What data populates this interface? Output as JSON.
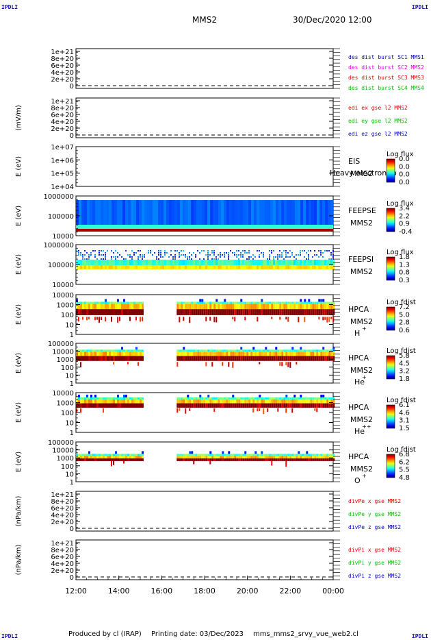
{
  "corner_labels": {
    "tl": "IPDLI",
    "tr": "IPDLI",
    "bl": "IPDLI",
    "br": "IPDLI"
  },
  "header": {
    "title": "MMS2",
    "datetime": "30/Dec/2020 12:00"
  },
  "footer": {
    "produced_by": "Produced by cl (IRAP)",
    "printing_date": "Printing date: 03/Dec/2023",
    "product": "mms_mms2_srvy_vue_web2.cl"
  },
  "colors": {
    "frame": "#000000",
    "axis_text": "#000000",
    "legend_blue": "#0000c0",
    "legend_magenta": "#e000e0",
    "legend_red": "#e00000",
    "legend_green": "#00c000"
  },
  "chart_data": [
    {
      "type": "line",
      "name": "des dist burst",
      "ylabel": "",
      "ticks": [
        "1e+21",
        "8e+20",
        "6e+20",
        "4e+20",
        "2e+20",
        "0"
      ],
      "legend": [
        {
          "label": "des dist burst SC1 MMS1",
          "color": "#0000c0"
        },
        {
          "label": "des dist burst SC2 MMS2",
          "color": "#e000e0"
        },
        {
          "label": "des dist burst SC3 MMS3",
          "color": "#e00000"
        },
        {
          "label": "des dist burst SC4 MMS4",
          "color": "#00c000"
        }
      ],
      "series": []
    },
    {
      "type": "line",
      "name": "edi e gse l2",
      "ylabel": "(mV/m)",
      "ticks": [
        "1e+21",
        "8e+20",
        "6e+20",
        "4e+20",
        "2e+20",
        "0"
      ],
      "legend": [
        {
          "label": "edi ex gse l2 MMS2",
          "color": "#e00000"
        },
        {
          "label": "edi ey gse l2 MMS2",
          "color": "#00c000"
        },
        {
          "label": "edi ez gse l2 MMS2",
          "color": "#0000c0"
        }
      ],
      "series": []
    },
    {
      "type": "heatmap",
      "ylabel": "E (eV)",
      "ticks": [
        "1e+07",
        "1e+06",
        "1e+05",
        "1e+04"
      ],
      "instrument": "EIS",
      "spacecraft": "MMS2",
      "species": "",
      "overlay_text": "Heavy electron to",
      "colorbar": {
        "title": "Log flux",
        "ticks": [
          "0.0",
          "0.0",
          "0.0",
          "0.0"
        ]
      }
    },
    {
      "type": "heatmap",
      "ylabel": "E (eV)",
      "ticks": [
        "1000000",
        "100000",
        "10000"
      ],
      "instrument": "FEEPSE",
      "spacecraft": "MMS2",
      "species": "",
      "colorbar": {
        "title": "Log flux",
        "ticks": [
          "3.4",
          "2.2",
          "0.9",
          "-0.4"
        ]
      }
    },
    {
      "type": "heatmap",
      "ylabel": "E (eV)",
      "ticks": [
        "1000000",
        "100000",
        "10000"
      ],
      "instrument": "FEEPSI",
      "spacecraft": "MMS2",
      "species": "",
      "colorbar": {
        "title": "Log flux",
        "ticks": [
          "1.8",
          "1.3",
          "0.8",
          "0.3"
        ]
      }
    },
    {
      "type": "heatmap",
      "ylabel": "E (eV)",
      "ticks": [
        "10000",
        "1000",
        "100",
        "10",
        "1"
      ],
      "instrument": "HPCA",
      "spacecraft": "MMS2",
      "species": "H",
      "charge": "+",
      "colorbar": {
        "title": "Log fdist",
        "ticks": [
          "7.2",
          "5.0",
          "2.8",
          "0.6"
        ]
      }
    },
    {
      "type": "heatmap",
      "ylabel": "E (eV)",
      "ticks": [
        "100000",
        "10000",
        "1000",
        "100",
        "10",
        "1"
      ],
      "instrument": "HPCA",
      "spacecraft": "MMS2",
      "species": "He",
      "charge": "+",
      "colorbar": {
        "title": "Log fdist",
        "ticks": [
          "5.8",
          "4.5",
          "3.2",
          "1.8"
        ]
      }
    },
    {
      "type": "heatmap",
      "ylabel": "E (eV)",
      "ticks": [
        "10000",
        "1000",
        "100",
        "10",
        "1"
      ],
      "instrument": "HPCA",
      "spacecraft": "MMS2",
      "species": "He",
      "charge": "++",
      "colorbar": {
        "title": "Log fdist",
        "ticks": [
          "6.1",
          "4.6",
          "3.1",
          "1.5"
        ]
      }
    },
    {
      "type": "heatmap",
      "ylabel": "E (eV)",
      "ticks": [
        "100000",
        "10000",
        "1000",
        "100",
        "10",
        "1"
      ],
      "instrument": "HPCA",
      "spacecraft": "MMS2",
      "species": "O",
      "charge": "+",
      "colorbar": {
        "title": "Log fdist",
        "ticks": [
          "6.8",
          "6.2",
          "5.5",
          "4.8"
        ]
      }
    },
    {
      "type": "line",
      "name": "divPe",
      "ylabel": "(nPa/km)",
      "ticks": [
        "1e+21",
        "8e+20",
        "6e+20",
        "4e+20",
        "2e+20",
        "0"
      ],
      "legend": [
        {
          "label": "divPe x gse MMS2",
          "color": "#e00000"
        },
        {
          "label": "divPe y gse MMS2",
          "color": "#00c000"
        },
        {
          "label": "divPe z gse MMS2",
          "color": "#0000c0"
        }
      ],
      "series": []
    },
    {
      "type": "line",
      "name": "divPi",
      "ylabel": "(nPa/km)",
      "ticks": [
        "1e+21",
        "8e+20",
        "6e+20",
        "4e+20",
        "2e+20",
        "0"
      ],
      "legend": [
        {
          "label": "divPi x gse MMS2",
          "color": "#e00000"
        },
        {
          "label": "divPi y gse MMS2",
          "color": "#00c000"
        },
        {
          "label": "divPi z gse MMS2",
          "color": "#0000c0"
        }
      ],
      "series": []
    }
  ],
  "x_axis": {
    "ticks": [
      "12:00",
      "14:00",
      "16:00",
      "18:00",
      "20:00",
      "22:00",
      "00:00"
    ]
  }
}
